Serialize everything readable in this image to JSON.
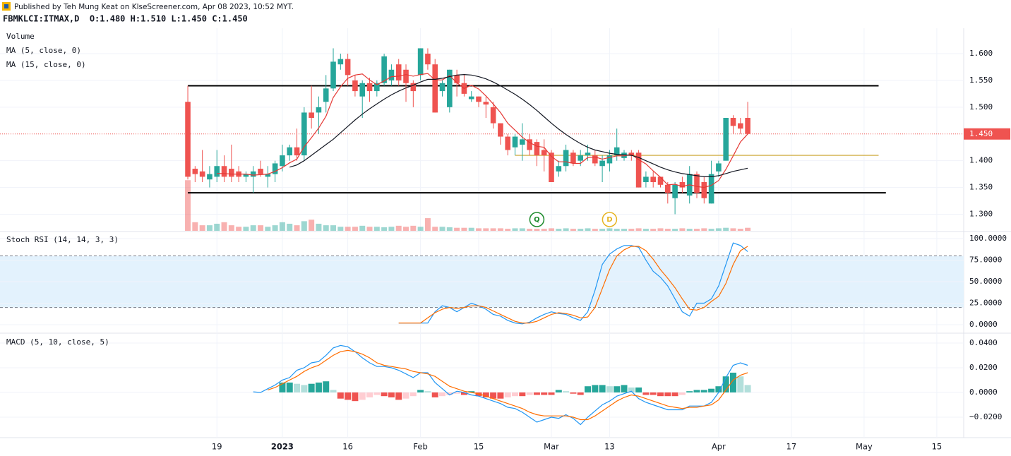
{
  "header": {
    "published": "Published by Teh Mung Keat on KlseScreener.com, Apr 08 2023, 10:52 MYT.",
    "symbol": "FBMKLCI:ITMAX,D  O:1.480 H:1.510 L:1.450 C:1.450"
  },
  "chart_data": [
    {
      "type": "candlestick",
      "xlim": [
        -25.83,
        106.7
      ],
      "ylim": [
        1.269,
        1.6475
      ],
      "up_color": "#26a69a",
      "down_color": "#ef5350",
      "yticks": [
        {
          "value": 1.6,
          "label": "1.600"
        },
        {
          "value": 1.55,
          "label": "1.550"
        },
        {
          "value": 1.5,
          "label": "1.500"
        },
        {
          "value": 1.4,
          "label": "1.400"
        },
        {
          "value": 1.35,
          "label": "1.350"
        },
        {
          "value": 1.3,
          "label": "1.300"
        }
      ],
      "open": [
        1.51,
        1.385,
        1.38,
        1.365,
        1.37,
        1.39,
        1.385,
        1.38,
        1.37,
        1.37,
        1.385,
        1.37,
        1.375,
        1.39,
        1.41,
        1.425,
        1.41,
        1.49,
        1.49,
        1.51,
        1.535,
        1.58,
        1.59,
        1.55,
        1.52,
        1.545,
        1.53,
        1.545,
        1.55,
        1.58,
        1.57,
        1.545,
        1.56,
        1.6,
        1.58,
        1.53,
        1.5,
        1.56,
        1.545,
        1.515,
        1.52,
        1.51,
        1.5,
        1.47,
        1.445,
        1.425,
        1.43,
        1.44,
        1.435,
        1.42,
        1.415,
        1.38,
        1.39,
        1.415,
        1.4,
        1.41,
        1.41,
        1.39,
        1.395,
        1.41,
        1.405,
        1.415,
        1.415,
        1.36,
        1.37,
        1.37,
        1.355,
        1.33,
        1.36,
        1.335,
        1.375,
        1.36,
        1.32,
        1.38,
        1.4,
        1.48,
        1.47,
        1.48
      ],
      "high": [
        1.54,
        1.39,
        1.42,
        1.39,
        1.42,
        1.41,
        1.43,
        1.39,
        1.38,
        1.39,
        1.4,
        1.39,
        1.4,
        1.43,
        1.43,
        1.46,
        1.5,
        1.54,
        1.52,
        1.56,
        1.61,
        1.6,
        1.6,
        1.56,
        1.55,
        1.555,
        1.55,
        1.6,
        1.58,
        1.59,
        1.58,
        1.55,
        1.61,
        1.61,
        1.59,
        1.55,
        1.57,
        1.57,
        1.56,
        1.53,
        1.52,
        1.52,
        1.51,
        1.47,
        1.45,
        1.45,
        1.47,
        1.45,
        1.44,
        1.44,
        1.42,
        1.4,
        1.43,
        1.42,
        1.42,
        1.43,
        1.42,
        1.41,
        1.42,
        1.46,
        1.42,
        1.42,
        1.42,
        1.38,
        1.38,
        1.37,
        1.36,
        1.36,
        1.37,
        1.39,
        1.38,
        1.37,
        1.4,
        1.4,
        1.48,
        1.485,
        1.48,
        1.51
      ],
      "low": [
        1.365,
        1.36,
        1.36,
        1.35,
        1.36,
        1.36,
        1.36,
        1.36,
        1.36,
        1.34,
        1.37,
        1.35,
        1.36,
        1.38,
        1.4,
        1.4,
        1.4,
        1.46,
        1.45,
        1.49,
        1.53,
        1.57,
        1.54,
        1.52,
        1.48,
        1.51,
        1.52,
        1.54,
        1.54,
        1.54,
        1.51,
        1.5,
        1.55,
        1.57,
        1.49,
        1.52,
        1.49,
        1.52,
        1.52,
        1.51,
        1.5,
        1.48,
        1.46,
        1.43,
        1.41,
        1.41,
        1.4,
        1.41,
        1.39,
        1.38,
        1.36,
        1.37,
        1.38,
        1.39,
        1.39,
        1.4,
        1.39,
        1.36,
        1.38,
        1.4,
        1.4,
        1.4,
        1.35,
        1.35,
        1.35,
        1.35,
        1.32,
        1.3,
        1.34,
        1.32,
        1.33,
        1.32,
        1.32,
        1.37,
        1.4,
        1.45,
        1.45,
        1.45
      ],
      "close": [
        1.37,
        1.375,
        1.37,
        1.375,
        1.39,
        1.37,
        1.37,
        1.37,
        1.375,
        1.38,
        1.375,
        1.375,
        1.395,
        1.41,
        1.425,
        1.41,
        1.49,
        1.48,
        1.5,
        1.535,
        1.585,
        1.59,
        1.56,
        1.53,
        1.545,
        1.53,
        1.545,
        1.595,
        1.57,
        1.55,
        1.545,
        1.53,
        1.61,
        1.58,
        1.49,
        1.545,
        1.57,
        1.545,
        1.525,
        1.52,
        1.51,
        1.505,
        1.47,
        1.445,
        1.42,
        1.445,
        1.44,
        1.42,
        1.41,
        1.41,
        1.36,
        1.39,
        1.42,
        1.395,
        1.41,
        1.415,
        1.395,
        1.4,
        1.41,
        1.425,
        1.415,
        1.41,
        1.35,
        1.37,
        1.36,
        1.355,
        1.34,
        1.355,
        1.35,
        1.375,
        1.34,
        1.33,
        1.375,
        1.395,
        1.48,
        1.465,
        1.46,
        1.45
      ],
      "volume": {
        "name": "Volume",
        "ylim": [
          0,
          400
        ],
        "values": [
          100,
          17,
          11,
          11,
          14,
          17,
          11,
          8,
          8,
          11,
          11,
          8,
          11,
          17,
          14,
          11,
          19,
          22,
          14,
          11,
          11,
          8,
          8,
          8,
          10,
          8,
          8,
          7,
          8,
          10,
          8,
          10,
          8,
          25,
          8,
          8,
          7,
          6,
          6,
          6,
          5,
          5,
          5,
          5,
          4,
          5,
          5,
          4,
          4,
          4,
          5,
          4,
          5,
          4,
          4,
          5,
          4,
          4,
          5,
          4,
          4,
          4,
          5,
          4,
          4,
          5,
          4,
          4,
          5,
          4,
          4,
          5,
          4,
          5,
          6,
          5,
          4,
          6
        ]
      },
      "series": [
        {
          "name": "MA (5, close, 0)",
          "color": "#e53935",
          "values": [
            null,
            null,
            null,
            null,
            1.376,
            1.376,
            1.375,
            1.375,
            1.375,
            1.373,
            1.374,
            1.375,
            1.38,
            1.387,
            1.396,
            1.403,
            1.426,
            1.443,
            1.461,
            1.483,
            1.518,
            1.538,
            1.554,
            1.56,
            1.562,
            1.551,
            1.542,
            1.549,
            1.557,
            1.558,
            1.561,
            1.558,
            1.561,
            1.563,
            1.551,
            1.551,
            1.559,
            1.546,
            1.535,
            1.541,
            1.534,
            1.521,
            1.506,
            1.49,
            1.47,
            1.457,
            1.444,
            1.434,
            1.427,
            1.425,
            1.408,
            1.398,
            1.398,
            1.395,
            1.395,
            1.406,
            1.407,
            1.403,
            1.406,
            1.409,
            1.409,
            1.412,
            1.402,
            1.394,
            1.381,
            1.369,
            1.355,
            1.356,
            1.352,
            1.355,
            1.352,
            1.35,
            1.354,
            1.363,
            1.384,
            1.409,
            1.435,
            1.45
          ]
        },
        {
          "name": "MA (15, close, 0)",
          "color": "#131722",
          "values": [
            null,
            null,
            null,
            null,
            null,
            null,
            null,
            null,
            null,
            null,
            null,
            null,
            null,
            null,
            1.388,
            1.392,
            1.4,
            1.41,
            1.42,
            1.43,
            1.44,
            1.452,
            1.464,
            1.476,
            1.487,
            1.497,
            1.506,
            1.515,
            1.523,
            1.53,
            1.536,
            1.541,
            1.547,
            1.552,
            1.552,
            1.554,
            1.557,
            1.56,
            1.561,
            1.56,
            1.557,
            1.553,
            1.547,
            1.54,
            1.532,
            1.524,
            1.515,
            1.505,
            1.494,
            1.482,
            1.47,
            1.459,
            1.449,
            1.44,
            1.432,
            1.425,
            1.42,
            1.417,
            1.414,
            1.412,
            1.411,
            1.41,
            1.406,
            1.4,
            1.394,
            1.388,
            1.383,
            1.379,
            1.376,
            1.374,
            1.372,
            1.37,
            1.37,
            1.372,
            1.376,
            1.38,
            1.383,
            1.386
          ]
        }
      ],
      "levels": [
        {
          "value": 1.54,
          "color": "#000000",
          "x": [
            0,
            95
          ]
        },
        {
          "value": 1.34,
          "color": "#000000",
          "x": [
            0,
            96
          ]
        },
        {
          "value": 1.41,
          "color": "#c9a227",
          "x": [
            45,
            95
          ]
        }
      ],
      "last": {
        "value": 1.45,
        "label": "1.450",
        "color": "#ef5350"
      },
      "markers": [
        {
          "label": "Q",
          "x": 48,
          "color": "#1b8a2a"
        },
        {
          "label": "D",
          "x": 58,
          "color": "#e6b422"
        }
      ]
    },
    {
      "type": "line",
      "title": "Stoch RSI (14, 14, 3, 3)",
      "xlim": [
        -25.83,
        106.7
      ],
      "ylim": [
        -9.8,
        106.6
      ],
      "yticks": [
        {
          "value": 100,
          "label": "100.0000"
        },
        {
          "value": 75,
          "label": "75.0000"
        },
        {
          "value": 50,
          "label": "50.0000"
        },
        {
          "value": 25,
          "label": "25.0000"
        },
        {
          "value": 0,
          "label": "0.0000"
        }
      ],
      "bands": [
        80,
        20
      ],
      "band_color": "#e3f2fd",
      "series": [
        {
          "color": "#2196f3",
          "values": [
            null,
            null,
            null,
            null,
            null,
            null,
            null,
            null,
            null,
            null,
            null,
            null,
            null,
            null,
            null,
            null,
            null,
            null,
            null,
            null,
            null,
            null,
            null,
            null,
            null,
            null,
            null,
            null,
            null,
            2,
            2,
            2,
            2,
            2,
            15,
            22,
            20,
            15,
            20,
            25,
            22,
            18,
            12,
            10,
            5,
            2,
            1,
            3,
            8,
            12,
            15,
            13,
            12,
            8,
            5,
            15,
            40,
            70,
            82,
            88,
            92,
            92,
            90,
            75,
            62,
            55,
            45,
            30,
            15,
            10,
            25,
            25,
            30,
            45,
            70,
            95,
            92,
            85
          ]
        },
        {
          "color": "#ff6d00",
          "values": [
            null,
            null,
            null,
            null,
            null,
            null,
            null,
            null,
            null,
            null,
            null,
            null,
            null,
            null,
            null,
            null,
            null,
            null,
            null,
            null,
            null,
            null,
            null,
            null,
            null,
            null,
            null,
            null,
            null,
            2,
            2,
            2,
            2,
            8,
            14,
            18,
            20,
            19,
            20,
            22,
            22,
            20,
            16,
            12,
            8,
            4,
            2,
            2,
            4,
            8,
            12,
            14,
            13,
            11,
            8,
            9,
            20,
            42,
            64,
            80,
            87,
            91,
            91,
            86,
            76,
            64,
            54,
            43,
            30,
            18,
            17,
            20,
            27,
            33,
            48,
            70,
            86,
            91
          ]
        }
      ]
    },
    {
      "type": "macd",
      "title": "MACD (5, 10, close, 5)",
      "xlim": [
        -25.83,
        106.7
      ],
      "ylim": [
        -0.0366,
        0.0474
      ],
      "yticks": [
        {
          "value": 0.04,
          "label": "0.0400"
        },
        {
          "value": 0.02,
          "label": "0.0200"
        },
        {
          "value": 0,
          "label": "0.0000"
        },
        {
          "value": -0.02,
          "label": "−0.0200"
        }
      ],
      "xticks": [
        {
          "value": 4,
          "label": "19"
        },
        {
          "value": 13,
          "label": "2023"
        },
        {
          "value": 22,
          "label": "16"
        },
        {
          "value": 32,
          "label": "Feb"
        },
        {
          "value": 40,
          "label": "15"
        },
        {
          "value": 50,
          "label": "Mar"
        },
        {
          "value": 58,
          "label": "13"
        },
        {
          "value": 73,
          "label": "Apr"
        },
        {
          "value": 83,
          "label": "17"
        },
        {
          "value": 93,
          "label": "May"
        },
        {
          "value": 103,
          "label": "15"
        }
      ],
      "histogram": {
        "colors": [
          "#26a69a",
          "#b2dfdb",
          "#ef5350",
          "#ffcdd2"
        ],
        "values": [
          null,
          null,
          null,
          null,
          null,
          null,
          null,
          null,
          null,
          null,
          null,
          null,
          null,
          0.008,
          0.008,
          0.007,
          0.006,
          0.007,
          0.008,
          0.009,
          0.002,
          -0.005,
          -0.006,
          -0.007,
          -0.006,
          -0.004,
          -0.002,
          -0.003,
          -0.004,
          -0.006,
          -0.005,
          -0.003,
          0.002,
          0.001,
          -0.004,
          -0.003,
          -0.002,
          -0.001,
          -0.002,
          0.001,
          -0.003,
          -0.004,
          -0.005,
          -0.005,
          -0.004,
          -0.003,
          -0.003,
          -0.002,
          -0.002,
          -0.002,
          -0.002,
          0.002,
          0.001,
          -0.001,
          -0.002,
          0.005,
          0.006,
          0.006,
          0.005,
          0.005,
          0.006,
          0.004,
          0.004,
          -0.002,
          -0.002,
          -0.003,
          -0.003,
          -0.003,
          -0.002,
          0.001,
          0.002,
          0.002,
          0.003,
          0.005,
          0.013,
          0.016,
          0.013,
          0.006
        ]
      },
      "series": [
        {
          "color": "#2196f3",
          "values": [
            null,
            null,
            null,
            null,
            null,
            null,
            null,
            null,
            null,
            0.0005,
            0,
            0.003,
            0.006,
            0.01,
            0.012,
            0.018,
            0.02,
            0.024,
            0.025,
            0.03,
            0.036,
            0.038,
            0.037,
            0.033,
            0.028,
            0.024,
            0.021,
            0.021,
            0.02,
            0.018,
            0.015,
            0.012,
            0.016,
            0.016,
            0.008,
            0.003,
            -0.002,
            0.001,
            0,
            -0.002,
            -0.003,
            -0.005,
            -0.007,
            -0.009,
            -0.012,
            -0.013,
            -0.016,
            -0.02,
            -0.024,
            -0.022,
            -0.02,
            -0.021,
            -0.018,
            -0.021,
            -0.026,
            -0.02,
            -0.015,
            -0.01,
            -0.007,
            -0.003,
            -0.001,
            0.001,
            -0.005,
            -0.008,
            -0.01,
            -0.012,
            -0.014,
            -0.014,
            -0.014,
            -0.011,
            -0.011,
            -0.011,
            -0.008,
            0,
            0.012,
            0.022,
            0.024,
            0.022
          ]
        },
        {
          "color": "#ff6d00",
          "values": [
            null,
            null,
            null,
            null,
            null,
            null,
            null,
            null,
            null,
            null,
            null,
            0.002,
            0.004,
            0.007,
            0.01,
            0.013,
            0.017,
            0.02,
            0.022,
            0.026,
            0.03,
            0.033,
            0.034,
            0.033,
            0.031,
            0.028,
            0.024,
            0.022,
            0.021,
            0.02,
            0.019,
            0.017,
            0.016,
            0.015,
            0.013,
            0.009,
            0.005,
            0.003,
            0.001,
            0,
            -0.001,
            -0.003,
            -0.005,
            -0.007,
            -0.009,
            -0.011,
            -0.013,
            -0.016,
            -0.018,
            -0.019,
            -0.019,
            -0.019,
            -0.019,
            -0.02,
            -0.022,
            -0.022,
            -0.019,
            -0.015,
            -0.011,
            -0.007,
            -0.004,
            -0.002,
            -0.003,
            -0.005,
            -0.007,
            -0.009,
            -0.011,
            -0.012,
            -0.013,
            -0.012,
            -0.012,
            -0.011,
            -0.01,
            -0.006,
            0.002,
            0.01,
            0.014,
            0.016
          ]
        }
      ]
    }
  ]
}
